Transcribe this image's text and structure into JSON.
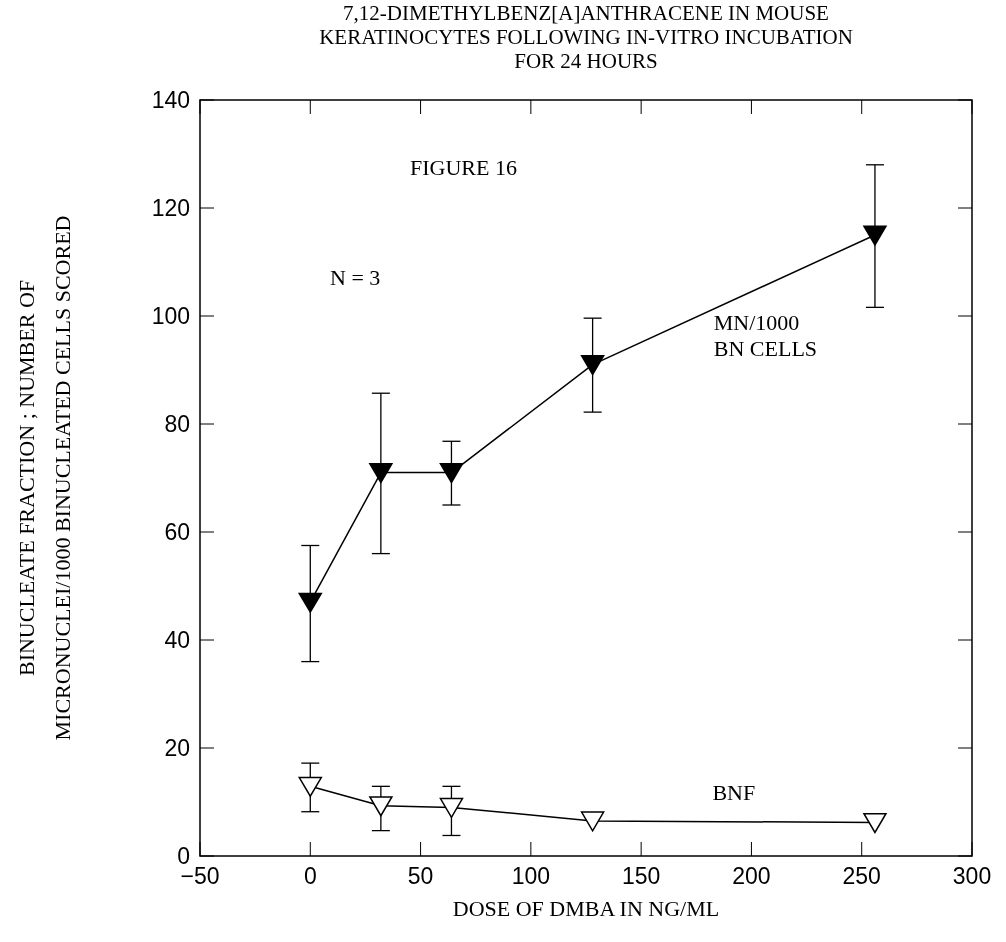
{
  "chart_data": {
    "type": "line",
    "title": "7,12-DIMETHYLBENZ[A]ANTHRACENE IN MOUSE KERATINOCYTES FOLLOWING IN-VITRO INCUBATION FOR 24 HOURS",
    "xlabel": "DOSE OF DMBA IN NG/ML",
    "ylabel": "BINUCLEATE FRACTION ; NUMBER OF MICRONUCLEI/1000 BINUCLEATED CELLS SCORED",
    "annotations": [
      "FIGURE 16",
      "N = 3"
    ],
    "x": [
      0,
      32,
      64,
      128,
      256
    ],
    "series": [
      {
        "name": "MN/1000 BN CELLS",
        "color": "#000000",
        "values": [
          47,
          71,
          71,
          91,
          115
        ],
        "errors": [
          [
            36,
            57.5
          ],
          [
            56,
            85.7
          ],
          [
            65,
            76.8
          ],
          [
            82.2,
            99.6
          ],
          [
            101.6,
            128
          ]
        ]
      },
      {
        "name": "BNF",
        "color": "#000000",
        "values": [
          12.9,
          9.3,
          9,
          6.5,
          6.2
        ],
        "errors": [
          [
            8.2,
            17.2
          ],
          [
            4.7,
            12.9
          ],
          [
            3.8,
            12.9
          ],
          null,
          null
        ]
      }
    ],
    "xlim": [
      -50,
      300
    ],
    "xticks": [
      -50,
      0,
      50,
      100,
      150,
      200,
      250,
      300
    ],
    "ylim": [
      0,
      140
    ],
    "yticks": [
      0,
      20,
      40,
      60,
      80,
      100,
      120,
      140
    ],
    "grid": false,
    "marker": "triangle",
    "line_style": "solid"
  }
}
